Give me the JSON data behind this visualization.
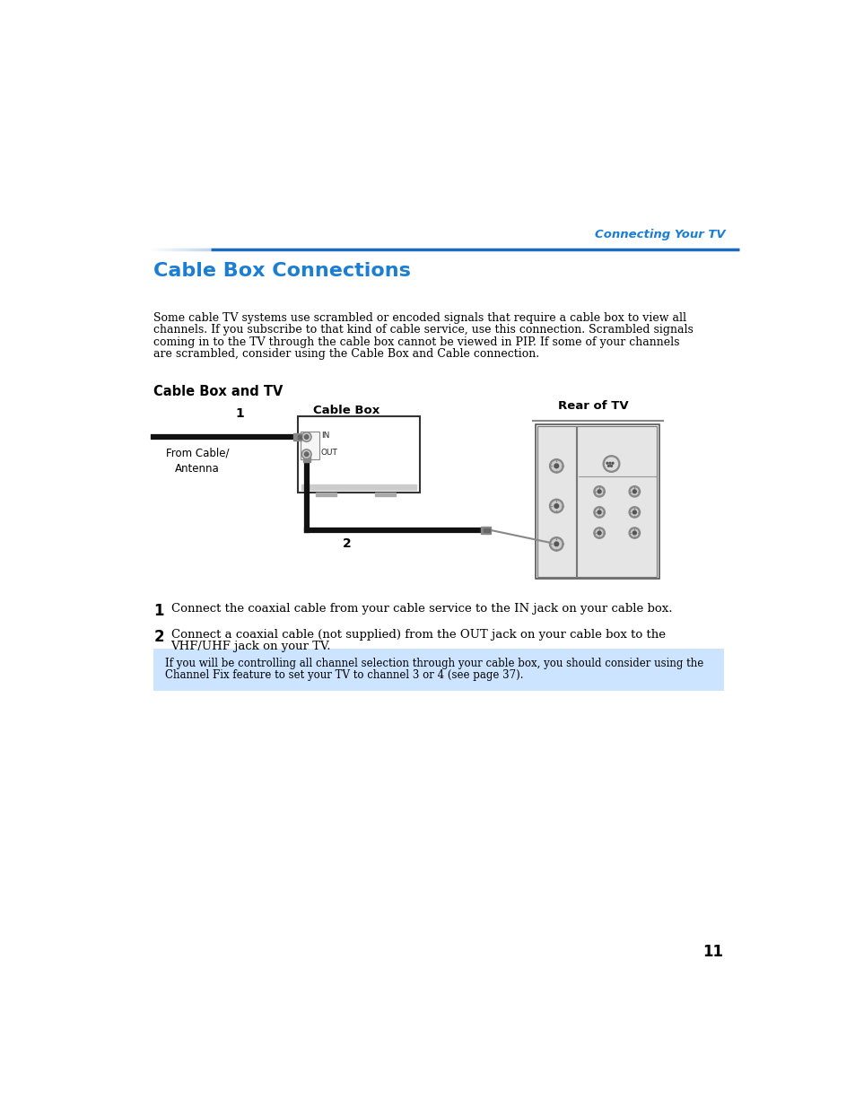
{
  "page_bg": "#ffffff",
  "header_text": "Connecting Your TV",
  "header_color": "#1a7fd4",
  "title": "Cable Box Connections",
  "title_color": "#1a7fd4",
  "body_text": "Some cable TV systems use scrambled or encoded signals that require a cable box to view all\nchannels. If you subscribe to that kind of cable service, use this connection. Scrambled signals\ncoming in to the TV through the cable box cannot be viewed in PIP. If some of your channels\nare scrambled, consider using the Cable Box and Cable connection.",
  "subheading": "Cable Box and TV",
  "diagram_label_cablebox": "Cable Box",
  "diagram_label_rear_tv": "Rear of TV",
  "diagram_label_from_cable": "From Cable/\nAntenna",
  "diagram_num1": "1",
  "diagram_num2": "2",
  "step1_num": "1",
  "step1_text": "Connect the coaxial cable from your cable service to the IN jack on your cable box.",
  "step2_num": "2",
  "step2_text": "Connect a coaxial cable (not supplied) from the OUT jack on your cable box to the\nVHF/UHF jack on your TV.",
  "note_bg": "#cce4ff",
  "note_text": "If you will be controlling all channel selection through your cable box, you should consider using the\nChannel Fix feature to set your TV to channel 3 or 4 (see page 37).",
  "page_number": "11"
}
